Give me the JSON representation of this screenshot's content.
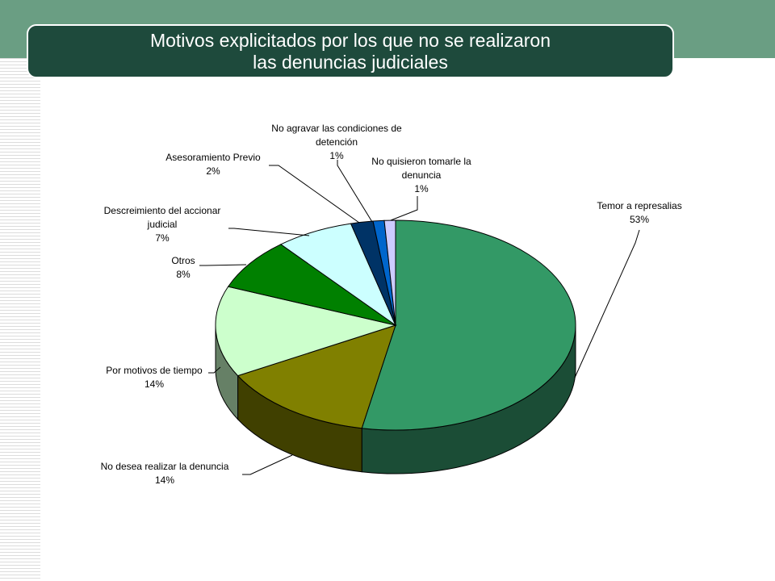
{
  "slide": {
    "title_line1": "Motivos explicitados por los que no se realizaron",
    "title_line2": "las denuncias judiciales",
    "colors": {
      "top_band": "#6a9e83",
      "title_box": "#1e4a3c",
      "title_text": "#ffffff"
    }
  },
  "chart_data": {
    "type": "pie",
    "style": "3d",
    "legend": "none",
    "series": [
      {
        "category_lines": [
          "Temor a represalias"
        ],
        "value_label": "53%",
        "value": 53,
        "color": "#339966",
        "side_color": "#1b4d36"
      },
      {
        "category_lines": [
          "No desea realizar la denuncia"
        ],
        "value_label": "14%",
        "value": 14,
        "color": "#808000",
        "side_color": "#404000"
      },
      {
        "category_lines": [
          "Por motivos de tiempo"
        ],
        "value_label": "14%",
        "value": 14,
        "color": "#ccffcc",
        "side_color": "#668066"
      },
      {
        "category_lines": [
          "Otros"
        ],
        "value_label": "8%",
        "value": 8,
        "color": "#008000",
        "side_color": "#004000"
      },
      {
        "category_lines": [
          "Descreimiento del accionar",
          "judicial"
        ],
        "value_label": "7%",
        "value": 7,
        "color": "#ccffff",
        "side_color": "#668080"
      },
      {
        "category_lines": [
          "Asesoramiento Previo"
        ],
        "value_label": "2%",
        "value": 2,
        "color": "#003366",
        "side_color": "#001a33"
      },
      {
        "category_lines": [
          "No agravar las condiciones de",
          "detención"
        ],
        "value_label": "1%",
        "value": 1,
        "color": "#0066cc",
        "side_color": "#003366"
      },
      {
        "category_lines": [
          "No quisieron tomarle la",
          "denuncia"
        ],
        "value_label": "1%",
        "value": 1,
        "color": "#ccccff",
        "side_color": "#666680"
      }
    ]
  }
}
